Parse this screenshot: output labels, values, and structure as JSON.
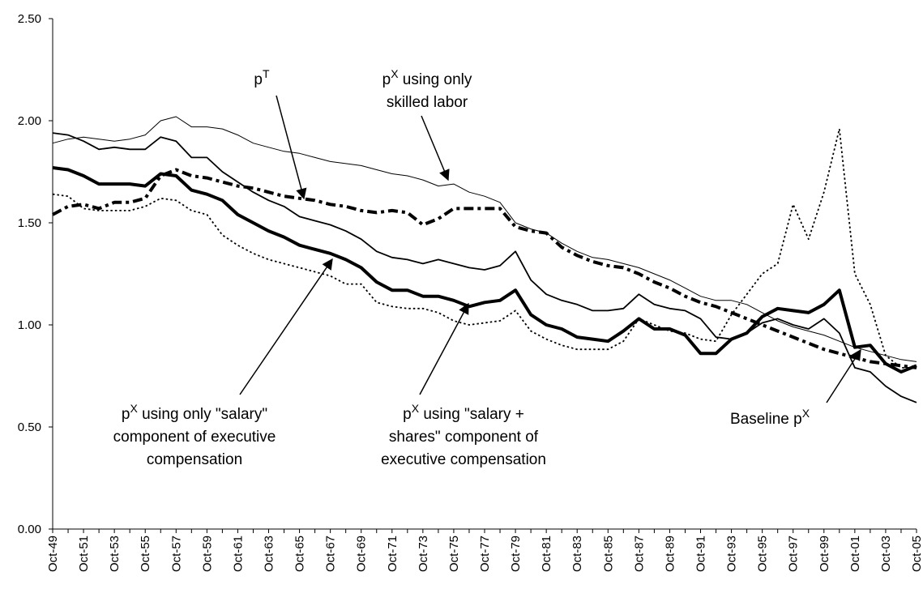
{
  "chart_data": {
    "type": "line",
    "categories": [
      "Oct-49",
      null,
      "Oct-51",
      null,
      "Oct-53",
      null,
      "Oct-55",
      null,
      "Oct-57",
      null,
      "Oct-59",
      null,
      "Oct-61",
      null,
      "Oct-63",
      null,
      "Oct-65",
      null,
      "Oct-67",
      null,
      "Oct-69",
      null,
      "Oct-71",
      null,
      "Oct-73",
      null,
      "Oct-75",
      null,
      "Oct-77",
      null,
      "Oct-79",
      null,
      "Oct-81",
      null,
      "Oct-83",
      null,
      "Oct-85",
      null,
      "Oct-87",
      null,
      "Oct-89",
      null,
      "Oct-91",
      null,
      "Oct-93",
      null,
      "Oct-95",
      null,
      "Oct-97",
      null,
      "Oct-99",
      null,
      "Oct-01",
      null,
      "Oct-03",
      null,
      "Oct-05"
    ],
    "ylim": [
      0,
      2.5
    ],
    "yticks": [
      {
        "value": 0,
        "label": "0.00"
      },
      {
        "value": 0.5,
        "label": "0.50"
      },
      {
        "value": 1,
        "label": "1.00"
      },
      {
        "value": 1.5,
        "label": "1.50"
      },
      {
        "value": 2,
        "label": "2.00"
      },
      {
        "value": 2.5,
        "label": "2.50"
      }
    ],
    "grid": false,
    "series": [
      {
        "color": "#000000",
        "style": "thin",
        "values": [
          1.89,
          1.91,
          1.92,
          1.91,
          1.9,
          1.91,
          1.93,
          2.0,
          2.02,
          1.97,
          1.97,
          1.96,
          1.93,
          1.89,
          1.87,
          1.85,
          1.84,
          1.82,
          1.8,
          1.79,
          1.78,
          1.76,
          1.74,
          1.73,
          1.71,
          1.68,
          1.69,
          1.65,
          1.63,
          1.6,
          1.5,
          1.47,
          1.45,
          1.4,
          1.36,
          1.33,
          1.32,
          1.3,
          1.28,
          1.25,
          1.22,
          1.18,
          1.14,
          1.12,
          1.12,
          1.1,
          1.06,
          1.02,
          0.99,
          0.97,
          0.95,
          0.92,
          0.89,
          0.87,
          0.85,
          0.83,
          0.82
        ]
      },
      {
        "color": "#000000",
        "style": "dash-dot",
        "values": [
          1.54,
          1.58,
          1.59,
          1.57,
          1.6,
          1.6,
          1.62,
          1.73,
          1.76,
          1.73,
          1.72,
          1.7,
          1.68,
          1.67,
          1.65,
          1.63,
          1.62,
          1.61,
          1.59,
          1.58,
          1.56,
          1.55,
          1.56,
          1.55,
          1.49,
          1.52,
          1.57,
          1.57,
          1.57,
          1.57,
          1.48,
          1.46,
          1.45,
          1.38,
          1.34,
          1.31,
          1.29,
          1.28,
          1.25,
          1.21,
          1.18,
          1.14,
          1.11,
          1.09,
          1.06,
          1.03,
          1.0,
          0.97,
          0.94,
          0.91,
          0.88,
          0.86,
          0.84,
          0.82,
          0.81,
          0.8,
          0.79
        ]
      },
      {
        "color": "#000000",
        "style": "medium",
        "values": [
          1.94,
          1.93,
          1.9,
          1.86,
          1.87,
          1.86,
          1.86,
          1.92,
          1.9,
          1.82,
          1.82,
          1.75,
          1.7,
          1.65,
          1.61,
          1.58,
          1.53,
          1.51,
          1.49,
          1.46,
          1.42,
          1.36,
          1.33,
          1.32,
          1.3,
          1.32,
          1.3,
          1.28,
          1.27,
          1.29,
          1.36,
          1.22,
          1.15,
          1.12,
          1.1,
          1.07,
          1.07,
          1.08,
          1.15,
          1.1,
          1.08,
          1.07,
          1.03,
          0.94,
          0.93,
          0.96,
          1.01,
          1.03,
          1.0,
          0.98,
          1.03,
          0.96,
          0.79,
          0.77,
          0.7,
          0.65,
          0.62
        ]
      },
      {
        "color": "#000000",
        "style": "thick",
        "values": [
          1.77,
          1.76,
          1.73,
          1.69,
          1.69,
          1.69,
          1.68,
          1.74,
          1.73,
          1.66,
          1.64,
          1.61,
          1.54,
          1.5,
          1.46,
          1.43,
          1.39,
          1.37,
          1.35,
          1.32,
          1.28,
          1.21,
          1.17,
          1.17,
          1.14,
          1.14,
          1.12,
          1.09,
          1.11,
          1.12,
          1.17,
          1.05,
          1.0,
          0.98,
          0.94,
          0.93,
          0.92,
          0.97,
          1.03,
          0.98,
          0.98,
          0.95,
          0.86,
          0.86,
          0.93,
          0.96,
          1.04,
          1.08,
          1.07,
          1.06,
          1.1,
          1.17,
          0.89,
          0.9,
          0.81,
          0.77,
          0.8
        ]
      },
      {
        "color": "#000000",
        "style": "dotted",
        "values": [
          1.64,
          1.63,
          1.57,
          1.56,
          1.56,
          1.56,
          1.58,
          1.62,
          1.61,
          1.56,
          1.54,
          1.44,
          1.39,
          1.35,
          1.32,
          1.3,
          1.28,
          1.26,
          1.24,
          1.2,
          1.2,
          1.11,
          1.09,
          1.08,
          1.08,
          1.06,
          1.02,
          1.0,
          1.01,
          1.02,
          1.07,
          0.97,
          0.93,
          0.9,
          0.88,
          0.88,
          0.88,
          0.92,
          1.03,
          1.0,
          0.97,
          0.96,
          0.93,
          0.92,
          1.05,
          1.15,
          1.25,
          1.3,
          1.59,
          1.42,
          1.65,
          1.96,
          1.25,
          1.1,
          0.85,
          0.79,
          0.79
        ]
      }
    ],
    "annotations": [
      {
        "lines": [
          [
            {
              "t": "p"
            },
            {
              "sup": "T"
            }
          ]
        ]
      },
      {
        "lines": [
          [
            {
              "t": "p"
            },
            {
              "sup": "X"
            },
            {
              "t": " using only"
            }
          ],
          [
            {
              "t": "skilled labor"
            }
          ]
        ]
      },
      {
        "lines": [
          [
            {
              "t": "p"
            },
            {
              "sup": "X"
            },
            {
              "t": " using only \"salary\""
            }
          ],
          [
            {
              "t": "component of executive"
            }
          ],
          [
            {
              "t": "compensation"
            }
          ]
        ]
      },
      {
        "lines": [
          [
            {
              "t": "p"
            },
            {
              "sup": "X"
            },
            {
              "t": " using \"salary +"
            }
          ],
          [
            {
              "t": "shares\" component of"
            }
          ],
          [
            {
              "t": "executive compensation"
            }
          ]
        ]
      },
      {
        "lines": [
          [
            {
              "t": "Baseline p"
            },
            {
              "sup": "X"
            }
          ]
        ]
      }
    ]
  }
}
